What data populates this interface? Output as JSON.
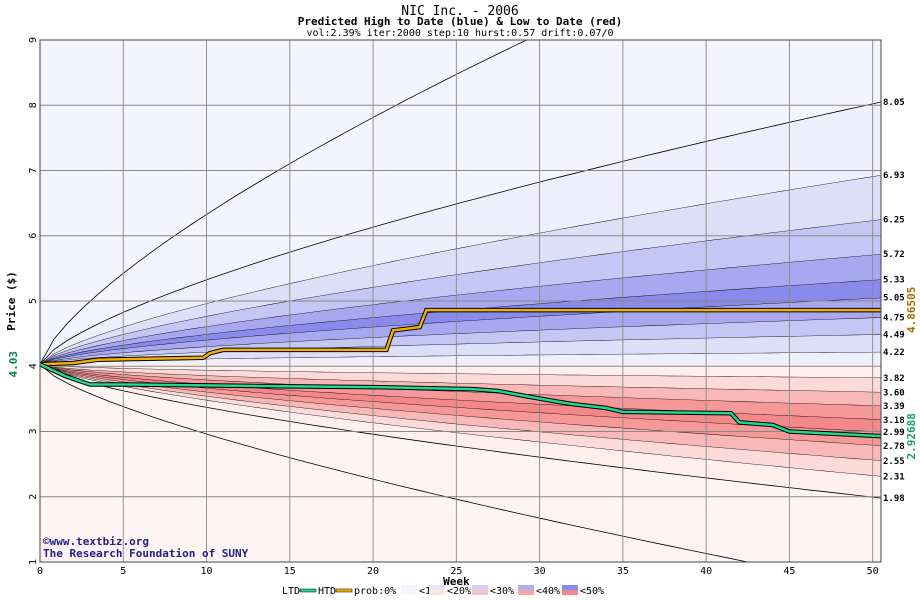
{
  "chart_data": {
    "type": "area",
    "title": "NIC Inc. - 2006",
    "subtitle": "Predicted High to Date (blue) &  Low to Date (red)",
    "params": "vol:2.39% iter:2000 step:10 hurst:0.57 drift:0.07/0",
    "xlabel": "Week",
    "ylabel": "Price ($)",
    "xlim": [
      0,
      50.5
    ],
    "ylim": [
      1,
      9
    ],
    "x_ticks": [
      0,
      5,
      10,
      15,
      20,
      25,
      30,
      35,
      40,
      45,
      50
    ],
    "y_ticks": [
      1,
      2,
      3,
      4,
      5,
      6,
      7,
      8,
      9
    ],
    "start_price": 4.03,
    "start_price_label": "4.03",
    "grid": true,
    "right_labels": [
      "8.05",
      "6.93",
      "6.25",
      "5.72",
      "5.33",
      "5.05",
      "4.75",
      "4.49",
      "4.22",
      "3.82",
      "3.60",
      "3.39",
      "3.18",
      "2.99",
      "2.78",
      "2.55",
      "2.31",
      "1.98"
    ],
    "htd_end_value": "4.86505",
    "ltd_end_value": "2.92688",
    "htd_series": {
      "name": "HTD",
      "color": "#f0b000",
      "points": [
        [
          0,
          4.03
        ],
        [
          2,
          4.05
        ],
        [
          3.5,
          4.1
        ],
        [
          9.8,
          4.13
        ],
        [
          10.2,
          4.2
        ],
        [
          11,
          4.25
        ],
        [
          20.8,
          4.25
        ],
        [
          21.2,
          4.55
        ],
        [
          22.8,
          4.6
        ],
        [
          23.2,
          4.86
        ],
        [
          50.5,
          4.86
        ]
      ]
    },
    "ltd_series": {
      "name": "LTD",
      "color": "#20d890",
      "points": [
        [
          0,
          4.03
        ],
        [
          1.5,
          3.85
        ],
        [
          3,
          3.72
        ],
        [
          5,
          3.72
        ],
        [
          12,
          3.7
        ],
        [
          20,
          3.68
        ],
        [
          26,
          3.65
        ],
        [
          27.5,
          3.62
        ],
        [
          29,
          3.55
        ],
        [
          31,
          3.46
        ],
        [
          32,
          3.42
        ],
        [
          34,
          3.36
        ],
        [
          35,
          3.3
        ],
        [
          41.5,
          3.28
        ],
        [
          42,
          3.14
        ],
        [
          44,
          3.1
        ],
        [
          45,
          3.0
        ],
        [
          50.5,
          2.93
        ]
      ]
    },
    "blue_bands": [
      {
        "end": 4.22,
        "k": 0.5,
        "color": "#eeeefc"
      },
      {
        "end": 4.49,
        "k": 0.55,
        "color": "#dedef8"
      },
      {
        "end": 4.75,
        "k": 0.6,
        "color": "#c6c6f4"
      },
      {
        "end": 5.05,
        "k": 0.62,
        "color": "#a8a8f0"
      },
      {
        "end": 5.33,
        "k": 0.64,
        "color": "#8a8aec"
      },
      {
        "end": 5.72,
        "k": 0.66,
        "color": "#a8a8f0"
      },
      {
        "end": 6.25,
        "k": 0.68,
        "color": "#c6c6f4"
      },
      {
        "end": 6.93,
        "k": 0.7,
        "color": "#dedef8"
      },
      {
        "end": 8.05,
        "k": 0.7,
        "color": "#eeeefc"
      },
      {
        "end": 11.4,
        "k": 0.72,
        "color": null
      }
    ],
    "red_bands": [
      {
        "end": 3.82,
        "k": 0.5,
        "color": "#ffeeee"
      },
      {
        "end": 3.6,
        "k": 0.55,
        "color": "#fcdada"
      },
      {
        "end": 3.39,
        "k": 0.6,
        "color": "#f8b8b8"
      },
      {
        "end": 3.18,
        "k": 0.62,
        "color": "#f69898"
      },
      {
        "end": 2.99,
        "k": 0.64,
        "color": "#f48888"
      },
      {
        "end": 2.78,
        "k": 0.66,
        "color": "#f69898"
      },
      {
        "end": 2.55,
        "k": 0.68,
        "color": "#f8b8b8"
      },
      {
        "end": 2.31,
        "k": 0.7,
        "color": "#fcdada"
      },
      {
        "end": 1.98,
        "k": 0.7,
        "color": "#ffeeee"
      },
      {
        "end": 0.6,
        "k": 0.72,
        "color": null
      }
    ],
    "outer_blue_color": "#f4f4fe",
    "outer_red_color": "#fff4f4"
  },
  "watermark": {
    "site": "©www.textbiz.org",
    "org": "The Research Foundation of SUNY"
  },
  "legend": {
    "ltd": "LTD",
    "htd": "HTD",
    "prob": "prob:0%",
    "p10": "<10%",
    "p20": "<20%",
    "p30": "<30%",
    "p40": "<40%",
    "p50": "<50%"
  }
}
